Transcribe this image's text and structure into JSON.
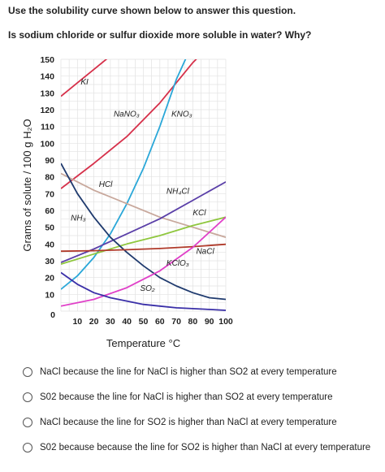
{
  "instruction": "Use the solubility curve shown below to answer this question.",
  "question": "Is sodium chloride or sulfur dioxide more soluble in water? Why?",
  "options": [
    "NaCl because the line for NaCl is higher than SO2 at every temperature",
    "S02 because the line for NaCl is higher than SO2 at every temperature",
    "NaCl because the line for SO2 is higher than NaCl at every temperature",
    "S02 because because the line for SO2 is higher than NaCl at every temperature"
  ],
  "chart_data": {
    "type": "line",
    "xlabel": "Temperature °C",
    "ylabel": "Grams of solute / 100 g H₂O",
    "xlim": [
      0,
      100
    ],
    "ylim": [
      0,
      150
    ],
    "xticks": [
      10,
      20,
      30,
      40,
      50,
      60,
      70,
      80,
      90,
      100
    ],
    "yticks": [
      10,
      20,
      30,
      40,
      50,
      60,
      70,
      80,
      90,
      100,
      110,
      120,
      130,
      140,
      150
    ],
    "origin_label": "0",
    "grid": true,
    "series": [
      {
        "name": "KI",
        "color": "#d6304a",
        "label_at": [
          12,
          135
        ],
        "points": [
          [
            0,
            128
          ],
          [
            10,
            136
          ],
          [
            20,
            144
          ],
          [
            30,
            152
          ]
        ]
      },
      {
        "name": "NaNO₃",
        "color": "#d6304a",
        "label_at": [
          32,
          116
        ],
        "points": [
          [
            0,
            73
          ],
          [
            20,
            88
          ],
          [
            40,
            104
          ],
          [
            60,
            124
          ],
          [
            80,
            148
          ],
          [
            83,
            151
          ]
        ]
      },
      {
        "name": "KNO₃",
        "color": "#2aa7d8",
        "label_at": [
          67,
          116
        ],
        "points": [
          [
            0,
            13
          ],
          [
            10,
            21
          ],
          [
            20,
            32
          ],
          [
            30,
            46
          ],
          [
            40,
            64
          ],
          [
            50,
            85
          ],
          [
            60,
            110
          ],
          [
            70,
            138
          ],
          [
            76,
            151
          ]
        ]
      },
      {
        "name": "HCl",
        "color": "#c8a89c",
        "label_at": [
          23,
          74
        ],
        "points": [
          [
            0,
            82
          ],
          [
            20,
            72
          ],
          [
            40,
            64
          ],
          [
            60,
            56
          ],
          [
            80,
            50
          ],
          [
            100,
            44
          ]
        ]
      },
      {
        "name": "NH₄Cl",
        "color": "#5a3fa8",
        "label_at": [
          64,
          70
        ],
        "points": [
          [
            0,
            29
          ],
          [
            20,
            37
          ],
          [
            40,
            46
          ],
          [
            60,
            55
          ],
          [
            80,
            66
          ],
          [
            100,
            77
          ]
        ]
      },
      {
        "name": "KCl",
        "color": "#8fc73e",
        "label_at": [
          80,
          57
        ],
        "points": [
          [
            0,
            28
          ],
          [
            20,
            34
          ],
          [
            40,
            40
          ],
          [
            60,
            45
          ],
          [
            80,
            51
          ],
          [
            100,
            56
          ]
        ]
      },
      {
        "name": "NH₃",
        "color": "#1f3a6e",
        "label_at": [
          6,
          54
        ],
        "points": [
          [
            0,
            88
          ],
          [
            10,
            70
          ],
          [
            20,
            56
          ],
          [
            30,
            44
          ],
          [
            40,
            35
          ],
          [
            50,
            27
          ],
          [
            60,
            20
          ],
          [
            70,
            15
          ],
          [
            80,
            11
          ],
          [
            90,
            8
          ],
          [
            100,
            7
          ]
        ]
      },
      {
        "name": "NaCl",
        "color": "#b03a2a",
        "label_at": [
          82,
          34
        ],
        "points": [
          [
            0,
            35.7
          ],
          [
            20,
            36
          ],
          [
            40,
            36.6
          ],
          [
            60,
            37.3
          ],
          [
            80,
            38.4
          ],
          [
            100,
            39.8
          ]
        ]
      },
      {
        "name": "KClO₃",
        "color": "#e040c8",
        "label_at": [
          64,
          27
        ],
        "points": [
          [
            0,
            3
          ],
          [
            20,
            7
          ],
          [
            40,
            14
          ],
          [
            60,
            24
          ],
          [
            80,
            38
          ],
          [
            100,
            56
          ]
        ]
      },
      {
        "name": "SO₂",
        "color": "#3a2fa8",
        "label_at": [
          48,
          12
        ],
        "points": [
          [
            0,
            23
          ],
          [
            10,
            16
          ],
          [
            20,
            11
          ],
          [
            30,
            8
          ],
          [
            40,
            6
          ],
          [
            50,
            4
          ],
          [
            60,
            3
          ],
          [
            70,
            2
          ],
          [
            80,
            1.5
          ],
          [
            90,
            1
          ],
          [
            100,
            0.5
          ]
        ]
      }
    ]
  }
}
